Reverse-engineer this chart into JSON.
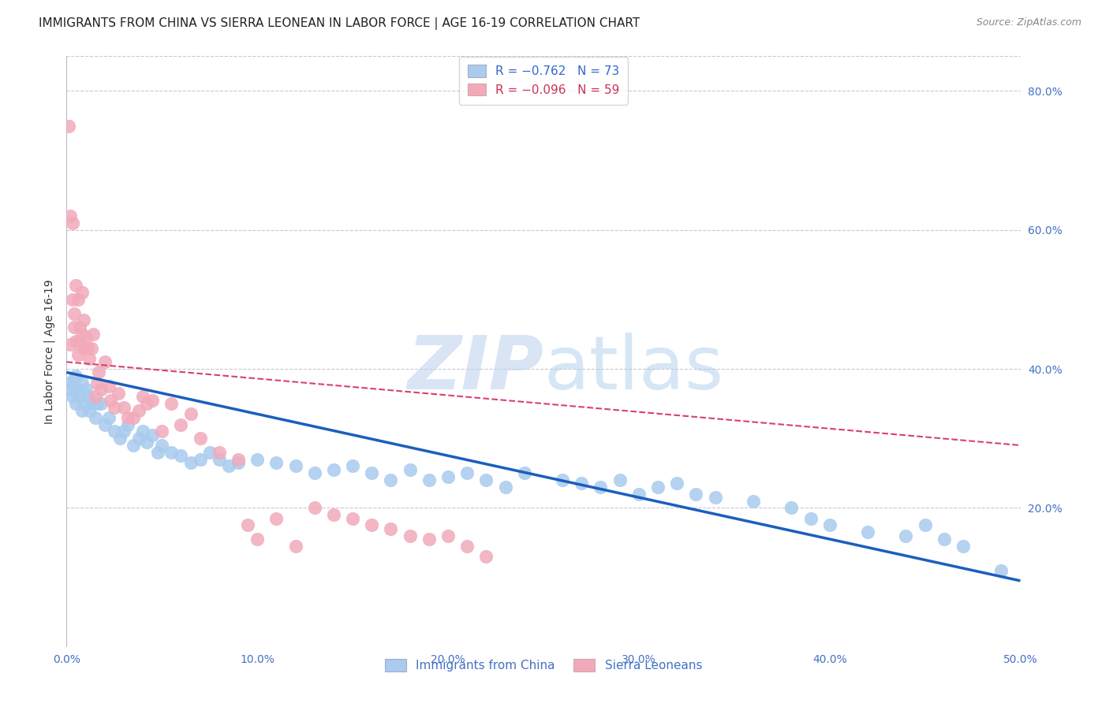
{
  "title": "IMMIGRANTS FROM CHINA VS SIERRA LEONEAN IN LABOR FORCE | AGE 16-19 CORRELATION CHART",
  "source": "Source: ZipAtlas.com",
  "ylabel": "In Labor Force | Age 16-19",
  "xlim": [
    0.0,
    0.5
  ],
  "ylim": [
    0.0,
    0.85
  ],
  "xticks": [
    0.0,
    0.1,
    0.2,
    0.3,
    0.4,
    0.5
  ],
  "xtick_labels": [
    "0.0%",
    "10.0%",
    "20.0%",
    "30.0%",
    "40.0%",
    "50.0%"
  ],
  "yticks_right": [
    0.2,
    0.4,
    0.6,
    0.8
  ],
  "ytick_labels_right": [
    "20.0%",
    "40.0%",
    "60.0%",
    "80.0%"
  ],
  "legend_china": "R = −0.762   N = 73",
  "legend_sierra": "R = −0.096   N = 59",
  "legend_label_china": "Immigrants from China",
  "legend_label_sierra": "Sierra Leoneans",
  "china_color": "#A8CBEE",
  "sierra_color": "#F2AABA",
  "china_line_color": "#1B5EBF",
  "sierra_line_color": "#D94070",
  "title_fontsize": 11,
  "axis_label_color": "#4472C4",
  "grid_color": "#C8C8D8",
  "china_scatter_x": [
    0.001,
    0.002,
    0.003,
    0.004,
    0.005,
    0.005,
    0.006,
    0.007,
    0.008,
    0.008,
    0.009,
    0.01,
    0.011,
    0.012,
    0.013,
    0.015,
    0.016,
    0.018,
    0.02,
    0.022,
    0.025,
    0.028,
    0.03,
    0.032,
    0.035,
    0.038,
    0.04,
    0.042,
    0.045,
    0.048,
    0.05,
    0.055,
    0.06,
    0.065,
    0.07,
    0.075,
    0.08,
    0.085,
    0.09,
    0.1,
    0.11,
    0.12,
    0.13,
    0.14,
    0.15,
    0.16,
    0.17,
    0.18,
    0.19,
    0.2,
    0.21,
    0.22,
    0.23,
    0.24,
    0.26,
    0.27,
    0.28,
    0.29,
    0.3,
    0.31,
    0.32,
    0.33,
    0.34,
    0.36,
    0.38,
    0.39,
    0.4,
    0.42,
    0.44,
    0.45,
    0.46,
    0.47,
    0.49
  ],
  "china_scatter_y": [
    0.38,
    0.37,
    0.36,
    0.385,
    0.35,
    0.39,
    0.37,
    0.36,
    0.38,
    0.34,
    0.35,
    0.37,
    0.36,
    0.34,
    0.35,
    0.33,
    0.35,
    0.35,
    0.32,
    0.33,
    0.31,
    0.3,
    0.31,
    0.32,
    0.29,
    0.3,
    0.31,
    0.295,
    0.305,
    0.28,
    0.29,
    0.28,
    0.275,
    0.265,
    0.27,
    0.28,
    0.27,
    0.26,
    0.265,
    0.27,
    0.265,
    0.26,
    0.25,
    0.255,
    0.26,
    0.25,
    0.24,
    0.255,
    0.24,
    0.245,
    0.25,
    0.24,
    0.23,
    0.25,
    0.24,
    0.235,
    0.23,
    0.24,
    0.22,
    0.23,
    0.235,
    0.22,
    0.215,
    0.21,
    0.2,
    0.185,
    0.175,
    0.165,
    0.16,
    0.175,
    0.155,
    0.145,
    0.11
  ],
  "sierra_scatter_x": [
    0.001,
    0.002,
    0.002,
    0.003,
    0.003,
    0.004,
    0.004,
    0.005,
    0.005,
    0.006,
    0.006,
    0.007,
    0.007,
    0.008,
    0.008,
    0.009,
    0.009,
    0.01,
    0.011,
    0.012,
    0.013,
    0.014,
    0.015,
    0.016,
    0.017,
    0.018,
    0.02,
    0.022,
    0.023,
    0.025,
    0.027,
    0.03,
    0.032,
    0.035,
    0.038,
    0.04,
    0.042,
    0.045,
    0.05,
    0.055,
    0.06,
    0.065,
    0.07,
    0.08,
    0.09,
    0.095,
    0.1,
    0.11,
    0.12,
    0.13,
    0.14,
    0.15,
    0.16,
    0.17,
    0.18,
    0.19,
    0.2,
    0.21,
    0.22
  ],
  "sierra_scatter_y": [
    0.75,
    0.435,
    0.62,
    0.61,
    0.5,
    0.48,
    0.46,
    0.44,
    0.52,
    0.5,
    0.42,
    0.46,
    0.44,
    0.51,
    0.45,
    0.47,
    0.43,
    0.445,
    0.43,
    0.415,
    0.43,
    0.45,
    0.36,
    0.38,
    0.395,
    0.37,
    0.41,
    0.375,
    0.355,
    0.345,
    0.365,
    0.345,
    0.33,
    0.33,
    0.34,
    0.36,
    0.35,
    0.355,
    0.31,
    0.35,
    0.32,
    0.335,
    0.3,
    0.28,
    0.27,
    0.175,
    0.155,
    0.185,
    0.145,
    0.2,
    0.19,
    0.185,
    0.175,
    0.17,
    0.16,
    0.155,
    0.16,
    0.145,
    0.13
  ],
  "china_trend_start_y": 0.395,
  "china_trend_end_y": 0.095,
  "sierra_trend_start_y": 0.41,
  "sierra_trend_end_y": 0.29
}
